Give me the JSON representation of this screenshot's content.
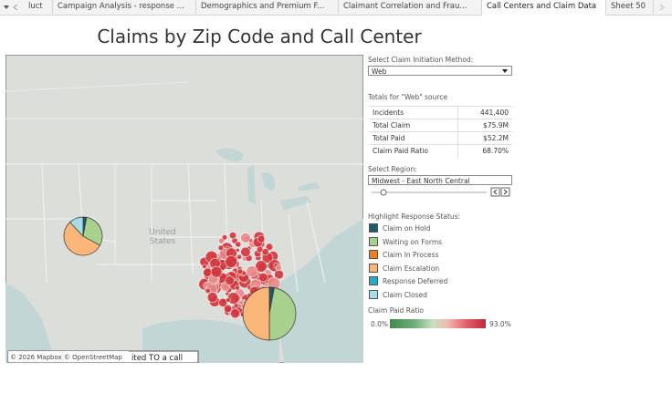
{
  "tabs": [
    "luct",
    "Campaign Analysis - response ...",
    "Demographics and Premium F...",
    "Claimant Correlation and Frau...",
    "Call Centers and Claim Data",
    "Sheet 50"
  ],
  "title": "Claims by Zip Code and Call Center",
  "map": {
    "label": "United States",
    "attribution": "© 2026 Mapbox © OpenStreetMap",
    "overlay_text": "ited TO a call",
    "pies": [
      {
        "values": [
          3,
          30,
          0,
          55,
          0,
          12
        ]
      },
      {
        "values": [
          3,
          47,
          0,
          50,
          0,
          0
        ]
      }
    ]
  },
  "panel": {
    "method_label": "Select Claim Initiation Method:",
    "method": "Web",
    "totals_title": "Totals for \"Web\" source",
    "totals": [
      [
        "Incidents",
        "441,400"
      ],
      [
        "Total Claim",
        "$75.9M"
      ],
      [
        "Total Paid",
        "$52.2M"
      ],
      [
        "Claim Paid Ratio",
        "68.70%"
      ]
    ],
    "region_label": "Select Region:",
    "region": "Midwest - East North Central",
    "status_label": "Highlight Response Status:",
    "statuses": [
      {
        "name": "Claim on Hold",
        "color": "#1f5a6b"
      },
      {
        "name": "Waiting on Forms",
        "color": "#a9d18e"
      },
      {
        "name": "Claim In Process",
        "color": "#f07d22"
      },
      {
        "name": "Claim Escalation",
        "color": "#fbb77a"
      },
      {
        "name": "Response Deferred",
        "color": "#2aa9c4"
      },
      {
        "name": "Claim Closed",
        "color": "#a6dde8"
      }
    ],
    "ratio_label": "Claim Paid Ratio",
    "ratio_min": "0.0%",
    "ratio_max": "93.0%"
  }
}
